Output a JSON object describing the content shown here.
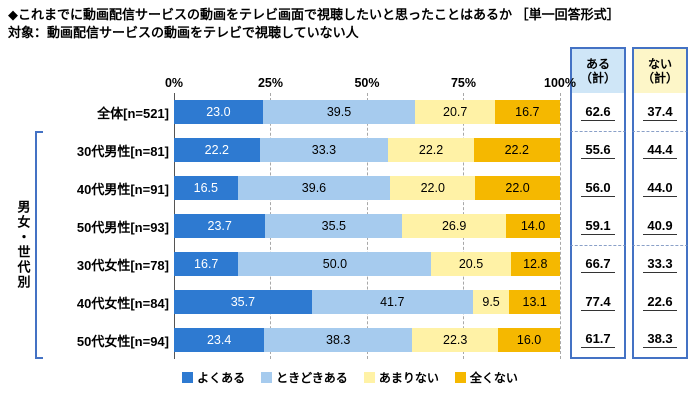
{
  "title": "◆これまでに動画配信サービスの動画をテレビ画面で視聴したいと思ったことはあるか ［単一回答形式］",
  "subtitle": "対象：動画配信サービスの動画をテレビで視聴していない人",
  "group_label": "男女・世代別",
  "axis": {
    "ticks": [
      "0%",
      "25%",
      "50%",
      "75%",
      "100%"
    ]
  },
  "summary": {
    "aru": {
      "line1": "ある",
      "line2": "（計）"
    },
    "nai": {
      "line1": "ない",
      "line2": "（計）"
    }
  },
  "colors": {
    "border_blue": "#4472c4",
    "aru_header_bg": "#cfe6f7",
    "nai_header_bg": "#fdf6c8"
  },
  "chart_data": {
    "type": "bar",
    "stacked": true,
    "orientation": "horizontal",
    "xlim": [
      0,
      100
    ],
    "grid": "dashed-vertical at 25/50/75/100",
    "legend_position": "bottom",
    "series": [
      "よくある",
      "ときどきある",
      "あまりない",
      "全くない"
    ],
    "colors": [
      "#2e7ad1",
      "#a6cbee",
      "#fff2a6",
      "#f5b800"
    ],
    "value_text_colors": [
      "#ffffff",
      "#000000",
      "#000000",
      "#000000"
    ],
    "rows": [
      {
        "label": "全体[n=521]",
        "values": [
          "23.0",
          "39.5",
          "20.7",
          "16.7"
        ],
        "aru": "62.6",
        "nai": "37.4"
      },
      {
        "label": "30代男性[n=81]",
        "values": [
          "22.2",
          "33.3",
          "22.2",
          "22.2"
        ],
        "aru": "55.6",
        "nai": "44.4"
      },
      {
        "label": "40代男性[n=91]",
        "values": [
          "16.5",
          "39.6",
          "22.0",
          "22.0"
        ],
        "aru": "56.0",
        "nai": "44.0"
      },
      {
        "label": "50代男性[n=93]",
        "values": [
          "23.7",
          "35.5",
          "26.9",
          "14.0"
        ],
        "aru": "59.1",
        "nai": "40.9"
      },
      {
        "label": "30代女性[n=78]",
        "values": [
          "16.7",
          "50.0",
          "20.5",
          "12.8"
        ],
        "aru": "66.7",
        "nai": "33.3"
      },
      {
        "label": "40代女性[n=84]",
        "values": [
          "35.7",
          "41.7",
          "9.5",
          "13.1"
        ],
        "aru": "77.4",
        "nai": "22.6"
      },
      {
        "label": "50代女性[n=94]",
        "values": [
          "23.4",
          "38.3",
          "22.3",
          "16.0"
        ],
        "aru": "61.7",
        "nai": "38.3"
      }
    ]
  }
}
